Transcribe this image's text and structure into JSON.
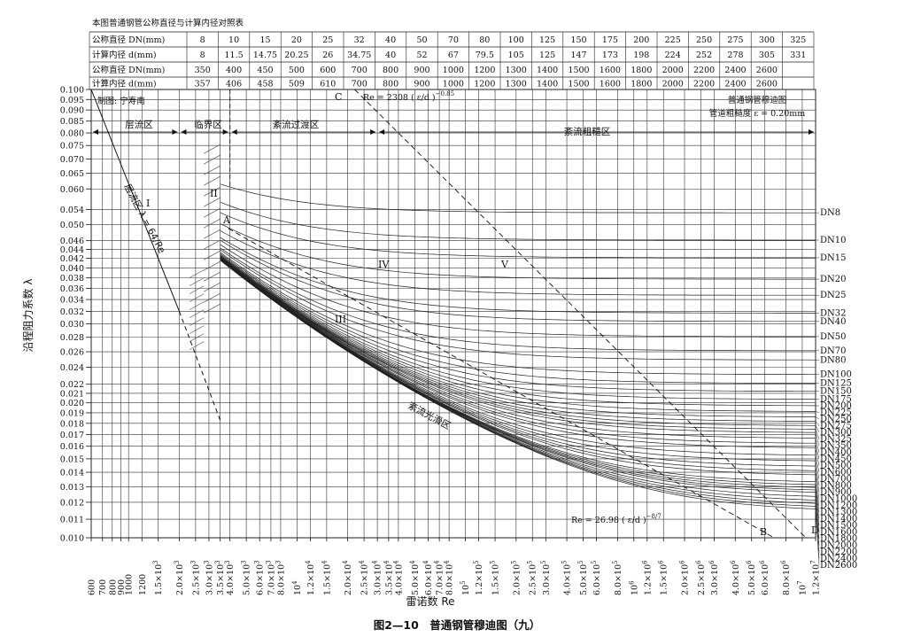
{
  "table": {
    "title": "本图普通钢管公称直径与计算内径对照表",
    "row_labels": [
      "公称直径 DN(mm)",
      "计算内径 d(mm)",
      "公称直径 DN(mm)",
      "计算内径 d(mm)"
    ],
    "row1": [
      "8",
      "10",
      "15",
      "20",
      "25",
      "32",
      "40",
      "50",
      "70",
      "80",
      "100",
      "125",
      "150",
      "175",
      "200",
      "225",
      "250",
      "275",
      "300",
      "325"
    ],
    "row2": [
      "8",
      "11.5",
      "14.75",
      "20.25",
      "26",
      "34.75",
      "40",
      "52",
      "67",
      "79.5",
      "105",
      "125",
      "147",
      "173",
      "198",
      "224",
      "252",
      "278",
      "305",
      "331"
    ],
    "row3": [
      "350",
      "400",
      "450",
      "500",
      "600",
      "700",
      "800",
      "900",
      "1000",
      "1200",
      "1300",
      "1400",
      "1500",
      "1600",
      "1800",
      "2000",
      "2200",
      "2400",
      "2600",
      ""
    ],
    "row4": [
      "357",
      "406",
      "458",
      "509",
      "610",
      "700",
      "800",
      "900",
      "1000",
      "1200",
      "1300",
      "1400",
      "1500",
      "1600",
      "1800",
      "2000",
      "2200",
      "2400",
      "2600",
      ""
    ]
  },
  "header_notes": {
    "drafter": "制图: 宁寿南",
    "chart_name": "普通钢管穆迪图",
    "roughness": "管道粗糙度 ε = 0.20mm"
  },
  "zones": {
    "laminar": "层流区",
    "critical": "临界区",
    "transition": "紊流过渡区",
    "rough": "紊流粗糙区",
    "smooth": "紊流光滑区",
    "laminar_formula": "层流区 λ = 64/Re"
  },
  "formulas": {
    "upper": "Re = 2308 ( ε/d )",
    "upper_exp": "−0.85",
    "lower": "Re = 26.98 ( ε/d )",
    "lower_exp": "−8/7"
  },
  "point_labels": [
    "A",
    "B",
    "C",
    "D"
  ],
  "roman_labels": [
    "I",
    "II",
    "III",
    "IV",
    "V"
  ],
  "caption": "图2—10　普通钢管穆迪图（九）",
  "chart_data": {
    "type": "line",
    "xlabel": "雷诺数 Re",
    "ylabel": "沿程阻力系数 λ",
    "x_scale": "log",
    "y_scale": "log",
    "xlim": [
      600,
      12000000
    ],
    "ylim": [
      0.01,
      0.1
    ],
    "roughness_mm": 0.2,
    "x_ticks": [
      {
        "v": 600,
        "m": "600",
        "e": ""
      },
      {
        "v": 700,
        "m": "700",
        "e": ""
      },
      {
        "v": 800,
        "m": "800",
        "e": ""
      },
      {
        "v": 900,
        "m": "900",
        "e": ""
      },
      {
        "v": 1000,
        "m": "1000",
        "e": ""
      },
      {
        "v": 1200,
        "m": "1200",
        "e": ""
      },
      {
        "v": 1500,
        "m": "1.5×10",
        "e": "3"
      },
      {
        "v": 2000,
        "m": "2.0×10",
        "e": "3"
      },
      {
        "v": 2500,
        "m": "2.5×10",
        "e": "3"
      },
      {
        "v": 3000,
        "m": "3.0×10",
        "e": "3"
      },
      {
        "v": 3500,
        "m": "3.5×10",
        "e": "3"
      },
      {
        "v": 4000,
        "m": "4.0×10",
        "e": "3"
      },
      {
        "v": 5000,
        "m": "5.0×10",
        "e": "3"
      },
      {
        "v": 6000,
        "m": "6.0×10",
        "e": "3"
      },
      {
        "v": 7000,
        "m": "7.0×10",
        "e": "3"
      },
      {
        "v": 8000,
        "m": "8.0×10",
        "e": "3"
      },
      {
        "v": 10000,
        "m": "10",
        "e": "4"
      },
      {
        "v": 12000,
        "m": "1.2×10",
        "e": "4"
      },
      {
        "v": 15000,
        "m": "1.5×10",
        "e": "4"
      },
      {
        "v": 20000,
        "m": "2.0×10",
        "e": "4"
      },
      {
        "v": 25000,
        "m": "2.5×10",
        "e": "4"
      },
      {
        "v": 30000,
        "m": "3.0×10",
        "e": "4"
      },
      {
        "v": 35000,
        "m": "3.5×10",
        "e": "4"
      },
      {
        "v": 40000,
        "m": "4.0×10",
        "e": "4"
      },
      {
        "v": 50000,
        "m": "5.0×10",
        "e": "4"
      },
      {
        "v": 60000,
        "m": "6.0×10",
        "e": "4"
      },
      {
        "v": 70000,
        "m": "7.0×10",
        "e": "4"
      },
      {
        "v": 80000,
        "m": "8.0×10",
        "e": "4"
      },
      {
        "v": 100000,
        "m": "10",
        "e": "5"
      },
      {
        "v": 120000,
        "m": "1.2×10",
        "e": "5"
      },
      {
        "v": 150000,
        "m": "1.5×10",
        "e": "5"
      },
      {
        "v": 200000,
        "m": "2.0×10",
        "e": "5"
      },
      {
        "v": 250000,
        "m": "2.5×10",
        "e": "5"
      },
      {
        "v": 300000,
        "m": "3.0×10",
        "e": "5"
      },
      {
        "v": 400000,
        "m": "4.0×10",
        "e": "5"
      },
      {
        "v": 500000,
        "m": "5.0×10",
        "e": "5"
      },
      {
        "v": 600000,
        "m": "6.0×10",
        "e": "5"
      },
      {
        "v": 800000,
        "m": "8.0×10",
        "e": "5"
      },
      {
        "v": 1000000,
        "m": "10",
        "e": "6"
      },
      {
        "v": 1200000,
        "m": "1.2×10",
        "e": "6"
      },
      {
        "v": 1500000,
        "m": "1.5×10",
        "e": "6"
      },
      {
        "v": 2000000,
        "m": "2.0×10",
        "e": "6"
      },
      {
        "v": 2500000,
        "m": "2.5×10",
        "e": "6"
      },
      {
        "v": 3000000,
        "m": "3.0×10",
        "e": "6"
      },
      {
        "v": 4000000,
        "m": "4.0×10",
        "e": "6"
      },
      {
        "v": 5000000,
        "m": "5.0×10",
        "e": "6"
      },
      {
        "v": 6000000,
        "m": "6.0×10",
        "e": "6"
      },
      {
        "v": 8000000,
        "m": "8.0×10",
        "e": "6"
      },
      {
        "v": 10000000,
        "m": "10",
        "e": "7"
      },
      {
        "v": 12000000,
        "m": "1.2×10",
        "e": "7"
      }
    ],
    "y_ticks": [
      "0.100",
      "0.095",
      "0.090",
      "0.085",
      "0.080",
      "0.075",
      "0.070",
      "0.065",
      "0.060",
      "0.054",
      "0.050",
      "0.046",
      "0.044",
      "0.042",
      "0.040",
      "0.038",
      "0.036",
      "0.034",
      "0.032",
      "0.030",
      "0.028",
      "0.026",
      "0.024",
      "0.022",
      "0.021",
      "0.020",
      "0.019",
      "0.018",
      "0.017",
      "0.016",
      "0.015",
      "0.014",
      "0.013",
      "0.012",
      "0.011",
      "0.010"
    ],
    "series": [
      {
        "name": "DN8",
        "d": 8
      },
      {
        "name": "DN10",
        "d": 11.5
      },
      {
        "name": "DN15",
        "d": 14.75
      },
      {
        "name": "DN20",
        "d": 20.25
      },
      {
        "name": "DN25",
        "d": 26
      },
      {
        "name": "DN32",
        "d": 34.75
      },
      {
        "name": "DN40",
        "d": 40
      },
      {
        "name": "DN50",
        "d": 52
      },
      {
        "name": "DN70",
        "d": 67
      },
      {
        "name": "DN80",
        "d": 79.5
      },
      {
        "name": "DN100",
        "d": 105
      },
      {
        "name": "DN125",
        "d": 125
      },
      {
        "name": "DN150",
        "d": 147
      },
      {
        "name": "DN175",
        "d": 173
      },
      {
        "name": "DN200",
        "d": 198
      },
      {
        "name": "DN225",
        "d": 224
      },
      {
        "name": "DN250",
        "d": 252
      },
      {
        "name": "DN275",
        "d": 278
      },
      {
        "name": "DN300",
        "d": 305
      },
      {
        "name": "DN325",
        "d": 331
      },
      {
        "name": "DN350",
        "d": 357
      },
      {
        "name": "DN400",
        "d": 406
      },
      {
        "name": "DN450",
        "d": 458
      },
      {
        "name": "DN500",
        "d": 509
      },
      {
        "name": "DN600",
        "d": 610
      },
      {
        "name": "DN700",
        "d": 700
      },
      {
        "name": "DN800",
        "d": 800
      },
      {
        "name": "DN900",
        "d": 900
      },
      {
        "name": "DN1000",
        "d": 1000
      },
      {
        "name": "DN1200",
        "d": 1200
      },
      {
        "name": "DN1300",
        "d": 1300
      },
      {
        "name": "DN1400",
        "d": 1400
      },
      {
        "name": "DN1500",
        "d": 1500
      },
      {
        "name": "DN1600",
        "d": 1600
      },
      {
        "name": "DN1800",
        "d": 1800
      },
      {
        "name": "DN2000",
        "d": 2000
      },
      {
        "name": "DN2200",
        "d": 2200
      },
      {
        "name": "DN2400",
        "d": 2400
      },
      {
        "name": "DN2600",
        "d": 2600
      }
    ],
    "laminar_line": {
      "x": [
        600,
        3500
      ],
      "formula": "64/Re"
    }
  }
}
